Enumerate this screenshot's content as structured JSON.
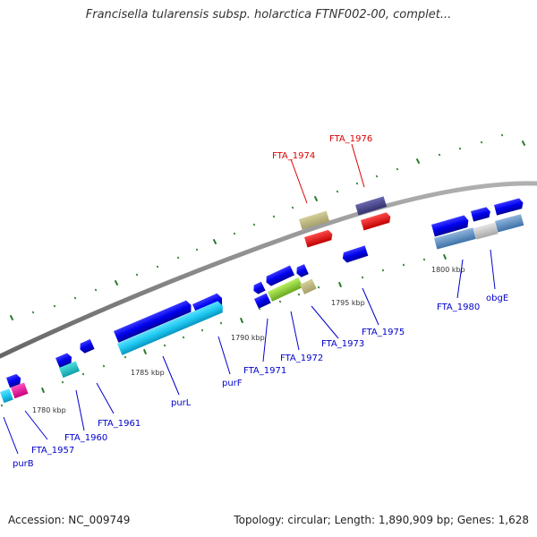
{
  "title": "Francisella tularensis subsp. holarctica FTNF002-00, complet...",
  "footer": {
    "accession": "Accession: NC_009749",
    "summary": "Topology: circular; Length: 1,890,909 bp; Genes: 1,628"
  },
  "colors": {
    "backbone": "#888888",
    "tick": "#2a7a2a",
    "label_blue": "#0000cc",
    "label_red": "#dd0000"
  },
  "kbp_labels": [
    "1780 kbp",
    "1785 kbp",
    "1790 kbp",
    "1795 kbp",
    "1800 kbp"
  ],
  "gene_labels": [
    {
      "text": "purB",
      "color": "blue"
    },
    {
      "text": "FTA_1957",
      "color": "blue"
    },
    {
      "text": "FTA_1960",
      "color": "blue"
    },
    {
      "text": "FTA_1961",
      "color": "blue"
    },
    {
      "text": "purL",
      "color": "blue"
    },
    {
      "text": "purF",
      "color": "blue"
    },
    {
      "text": "FTA_1971",
      "color": "blue"
    },
    {
      "text": "FTA_1972",
      "color": "blue"
    },
    {
      "text": "FTA_1973",
      "color": "blue"
    },
    {
      "text": "FTA_1974",
      "color": "red"
    },
    {
      "text": "FTA_1976",
      "color": "red"
    },
    {
      "text": "FTA_1975",
      "color": "blue"
    },
    {
      "text": "FTA_1980",
      "color": "blue"
    },
    {
      "text": "obgE",
      "color": "blue"
    }
  ]
}
